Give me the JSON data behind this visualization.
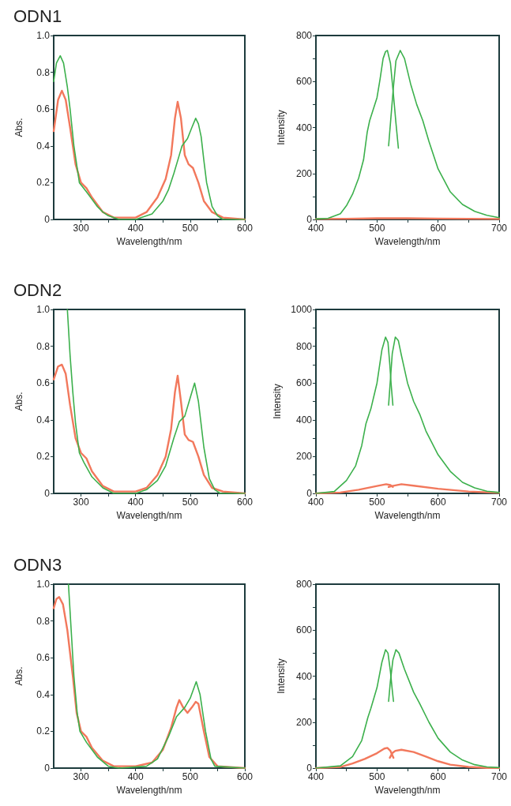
{
  "chart_data": [
    {
      "type": "line",
      "title": "ODN1",
      "xlabel": "Wavelength/nm",
      "ylabel": "Abs.",
      "xlim": [
        250,
        600
      ],
      "ylim": [
        0,
        1
      ],
      "marker": "none",
      "xticks": [
        300,
        {
          "value": 350,
          "label": null
        },
        400,
        {
          "value": 450,
          "label": null
        },
        500,
        {
          "value": 550,
          "label": null
        },
        600
      ],
      "yticks": [
        0,
        0.2,
        0.4,
        0.6,
        0.8,
        {
          "value": 1,
          "label": "1.0"
        }
      ],
      "series": [
        {
          "color": "#f2785c",
          "x": [
            250,
            258,
            265,
            272,
            280,
            290,
            300,
            310,
            320,
            340,
            360,
            400,
            420,
            440,
            455,
            465,
            472,
            477,
            483,
            490,
            497,
            505,
            515,
            525,
            540,
            560,
            600
          ],
          "values": [
            0.48,
            0.65,
            0.7,
            0.65,
            0.5,
            0.3,
            0.2,
            0.17,
            0.12,
            0.04,
            0.01,
            0.01,
            0.04,
            0.12,
            0.22,
            0.35,
            0.55,
            0.64,
            0.55,
            0.35,
            0.3,
            0.28,
            0.2,
            0.1,
            0.04,
            0.01,
            0
          ]
        },
        {
          "color": "#3cb04c",
          "x": [
            250,
            255,
            262,
            268,
            275,
            280,
            287,
            297,
            310,
            320,
            330,
            340,
            350,
            370,
            400,
            430,
            450,
            460,
            470,
            478,
            485,
            495,
            503,
            510,
            515,
            520,
            525,
            530,
            540,
            550,
            560,
            600
          ],
          "values": [
            0.75,
            0.85,
            0.89,
            0.85,
            0.72,
            0.6,
            0.4,
            0.2,
            0.15,
            0.11,
            0.07,
            0.04,
            0.02,
            0,
            0,
            0.03,
            0.1,
            0.16,
            0.25,
            0.33,
            0.4,
            0.44,
            0.5,
            0.55,
            0.52,
            0.45,
            0.32,
            0.2,
            0.07,
            0.02,
            0,
            0
          ]
        }
      ]
    },
    {
      "type": "line",
      "xlabel": "Wavelength/nm",
      "ylabel": "Intensity",
      "xlim": [
        400,
        700
      ],
      "ylim": [
        0,
        800
      ],
      "marker": "none",
      "xticks": [
        400,
        {
          "value": 450,
          "label": null
        },
        500,
        {
          "value": 550,
          "label": null
        },
        600,
        {
          "value": 650,
          "label": null
        },
        700
      ],
      "yticks": [
        0,
        {
          "value": 100,
          "label": null
        },
        200,
        {
          "value": 300,
          "label": null
        },
        400,
        {
          "value": 500,
          "label": null
        },
        600,
        {
          "value": 700,
          "label": null
        },
        800
      ],
      "series": [
        {
          "color": "#f2785c",
          "x": [
            400,
            450,
            500,
            550,
            600,
            650,
            700
          ],
          "values": [
            2,
            3,
            5,
            5,
            4,
            3,
            2
          ]
        },
        {
          "color": "#3cb04c",
          "x": [
            400,
            420,
            440,
            450,
            460,
            470,
            478,
            484,
            488,
            494,
            500,
            505,
            510,
            514,
            517,
            522,
            527,
            531,
            535
          ],
          "values": [
            2,
            5,
            25,
            60,
            110,
            180,
            260,
            380,
            430,
            480,
            530,
            610,
            700,
            730,
            735,
            680,
            540,
            420,
            310
          ]
        },
        {
          "color": "#3cb04c",
          "x": [
            519,
            523,
            527,
            531,
            538,
            545,
            555,
            565,
            575,
            585,
            600,
            620,
            640,
            660,
            680,
            700
          ],
          "values": [
            320,
            450,
            580,
            690,
            735,
            700,
            590,
            500,
            430,
            340,
            220,
            120,
            65,
            35,
            18,
            8
          ]
        }
      ]
    },
    {
      "type": "line",
      "title": "ODN2",
      "xlabel": "Wavelength/nm",
      "ylabel": "Abs.",
      "xlim": [
        250,
        600
      ],
      "ylim": [
        0,
        1
      ],
      "marker": "none",
      "xticks": [
        300,
        {
          "value": 350,
          "label": null
        },
        400,
        {
          "value": 450,
          "label": null
        },
        500,
        {
          "value": 550,
          "label": null
        },
        600
      ],
      "yticks": [
        0,
        0.2,
        0.4,
        0.6,
        0.8,
        {
          "value": 1,
          "label": "1.0"
        }
      ],
      "series": [
        {
          "color": "#f2785c",
          "x": [
            250,
            258,
            265,
            272,
            280,
            290,
            300,
            310,
            320,
            340,
            360,
            400,
            420,
            440,
            455,
            465,
            472,
            477,
            483,
            490,
            497,
            505,
            515,
            525,
            540,
            560,
            600
          ],
          "values": [
            0.62,
            0.69,
            0.7,
            0.65,
            0.48,
            0.3,
            0.22,
            0.19,
            0.12,
            0.04,
            0.01,
            0.01,
            0.03,
            0.1,
            0.2,
            0.35,
            0.55,
            0.64,
            0.5,
            0.32,
            0.29,
            0.28,
            0.2,
            0.1,
            0.03,
            0.01,
            0
          ]
        },
        {
          "color": "#3cb04c",
          "x": [
            275,
            280,
            285,
            290,
            297,
            305,
            320,
            340,
            360,
            400,
            420,
            440,
            455,
            470,
            480,
            490,
            500,
            508,
            515,
            525,
            535,
            545,
            555,
            600
          ],
          "values": [
            1,
            0.75,
            0.55,
            0.38,
            0.22,
            0.17,
            0.09,
            0.03,
            0,
            0,
            0.02,
            0.07,
            0.15,
            0.3,
            0.39,
            0.42,
            0.52,
            0.6,
            0.5,
            0.25,
            0.08,
            0.02,
            0,
            0
          ]
        }
      ]
    },
    {
      "type": "line",
      "xlabel": "Wavelength/nm",
      "ylabel": "Intensity",
      "xlim": [
        400,
        700
      ],
      "ylim": [
        0,
        1000
      ],
      "marker": "none",
      "xticks": [
        400,
        {
          "value": 450,
          "label": null
        },
        500,
        {
          "value": 550,
          "label": null
        },
        600,
        {
          "value": 650,
          "label": null
        },
        700
      ],
      "yticks": [
        0,
        {
          "value": 100,
          "label": null
        },
        200,
        {
          "value": 300,
          "label": null
        },
        400,
        {
          "value": 500,
          "label": null
        },
        600,
        {
          "value": 700,
          "label": null
        },
        800,
        {
          "value": 900,
          "label": null
        },
        1000
      ],
      "series": [
        {
          "color": "#f2785c",
          "x": [
            400,
            440,
            470,
            500,
            515,
            522,
            526
          ],
          "values": [
            0,
            5,
            20,
            40,
            50,
            45,
            35
          ]
        },
        {
          "color": "#f2785c",
          "x": [
            519,
            525,
            540,
            560,
            600,
            650,
            700
          ],
          "values": [
            35,
            40,
            50,
            42,
            25,
            10,
            3
          ]
        },
        {
          "color": "#3cb04c",
          "x": [
            400,
            430,
            450,
            465,
            475,
            482,
            490,
            500,
            508,
            514,
            518,
            521,
            523,
            526
          ],
          "values": [
            0,
            10,
            70,
            150,
            260,
            380,
            460,
            600,
            780,
            850,
            820,
            700,
            600,
            480
          ]
        },
        {
          "color": "#3cb04c",
          "x": [
            519,
            522,
            525,
            530,
            535,
            540,
            550,
            560,
            570,
            580,
            600,
            620,
            640,
            660,
            680,
            700
          ],
          "values": [
            480,
            620,
            760,
            850,
            830,
            750,
            600,
            500,
            430,
            340,
            210,
            120,
            60,
            30,
            12,
            5
          ]
        }
      ]
    },
    {
      "type": "line",
      "title": "ODN3",
      "xlabel": "Wavelength/nm",
      "ylabel": "Abs.",
      "xlim": [
        250,
        600
      ],
      "ylim": [
        0,
        1
      ],
      "marker": "none",
      "xticks": [
        300,
        {
          "value": 350,
          "label": null
        },
        400,
        {
          "value": 450,
          "label": null
        },
        500,
        {
          "value": 550,
          "label": null
        },
        600
      ],
      "yticks": [
        0,
        0.2,
        0.4,
        0.6,
        0.8,
        {
          "value": 1,
          "label": "1.0"
        }
      ],
      "series": [
        {
          "color": "#f2785c",
          "x": [
            250,
            255,
            260,
            267,
            275,
            285,
            292,
            300,
            310,
            320,
            340,
            360,
            400,
            430,
            450,
            465,
            475,
            480,
            487,
            495,
            503,
            510,
            515,
            525,
            535,
            550,
            600
          ],
          "values": [
            0.87,
            0.92,
            0.93,
            0.89,
            0.75,
            0.5,
            0.3,
            0.2,
            0.17,
            0.11,
            0.04,
            0.01,
            0.01,
            0.03,
            0.1,
            0.22,
            0.33,
            0.37,
            0.33,
            0.3,
            0.33,
            0.36,
            0.35,
            0.2,
            0.06,
            0.01,
            0
          ]
        },
        {
          "color": "#3cb04c",
          "x": [
            277,
            282,
            287,
            293,
            298,
            310,
            330,
            350,
            370,
            420,
            440,
            460,
            475,
            490,
            500,
            511,
            518,
            528,
            538,
            545,
            600
          ],
          "values": [
            1,
            0.75,
            0.5,
            0.3,
            0.2,
            0.14,
            0.06,
            0.01,
            0,
            0.01,
            0.05,
            0.17,
            0.28,
            0.33,
            0.38,
            0.47,
            0.4,
            0.2,
            0.05,
            0.01,
            0
          ]
        }
      ]
    },
    {
      "type": "line",
      "xlabel": "Wavelength/nm",
      "ylabel": "Intensity",
      "xlim": [
        400,
        700
      ],
      "ylim": [
        0,
        800
      ],
      "marker": "none",
      "xticks": [
        400,
        {
          "value": 450,
          "label": null
        },
        500,
        {
          "value": 550,
          "label": null
        },
        600,
        {
          "value": 650,
          "label": null
        },
        700
      ],
      "yticks": [
        0,
        {
          "value": 100,
          "label": null
        },
        200,
        {
          "value": 300,
          "label": null
        },
        400,
        {
          "value": 500,
          "label": null
        },
        600,
        {
          "value": 700,
          "label": null
        },
        800
      ],
      "series": [
        {
          "color": "#f2785c",
          "x": [
            400,
            440,
            460,
            480,
            500,
            512,
            517,
            522,
            527
          ],
          "values": [
            0,
            5,
            20,
            40,
            65,
            85,
            88,
            75,
            45
          ]
        },
        {
          "color": "#f2785c",
          "x": [
            521,
            525,
            530,
            540,
            560,
            580,
            600,
            620,
            650,
            680,
            700
          ],
          "values": [
            45,
            65,
            75,
            80,
            70,
            50,
            30,
            15,
            5,
            1,
            0
          ]
        },
        {
          "color": "#3cb04c",
          "x": [
            400,
            440,
            460,
            475,
            485,
            490,
            500,
            508,
            514,
            518,
            522,
            525,
            527
          ],
          "values": [
            0,
            10,
            50,
            120,
            220,
            260,
            350,
            460,
            515,
            500,
            420,
            340,
            290
          ]
        },
        {
          "color": "#3cb04c",
          "x": [
            519,
            522,
            526,
            531,
            536,
            545,
            560,
            570,
            585,
            600,
            620,
            640,
            660,
            680,
            700
          ],
          "values": [
            290,
            380,
            470,
            515,
            500,
            430,
            330,
            280,
            200,
            130,
            70,
            35,
            15,
            5,
            2
          ]
        }
      ]
    }
  ]
}
